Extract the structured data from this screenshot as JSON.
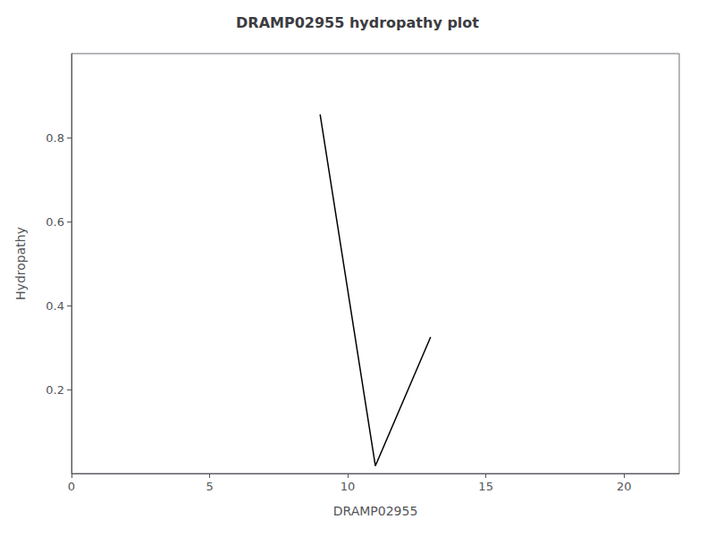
{
  "chart_data": {
    "type": "line",
    "title": "DRAMP02955 hydropathy plot",
    "xlabel": "DRAMP02955",
    "ylabel": "Hydropathy",
    "x": [
      9,
      11,
      13
    ],
    "values": [
      0.855,
      0.018,
      0.325
    ],
    "color": "#000000",
    "xlim": [
      0,
      22
    ],
    "xticks": [
      0,
      5,
      10,
      15,
      20
    ],
    "ylim": [
      0,
      1.0
    ],
    "yticks": [
      0.2,
      0.4,
      0.6,
      0.8
    ],
    "grid": false
  }
}
